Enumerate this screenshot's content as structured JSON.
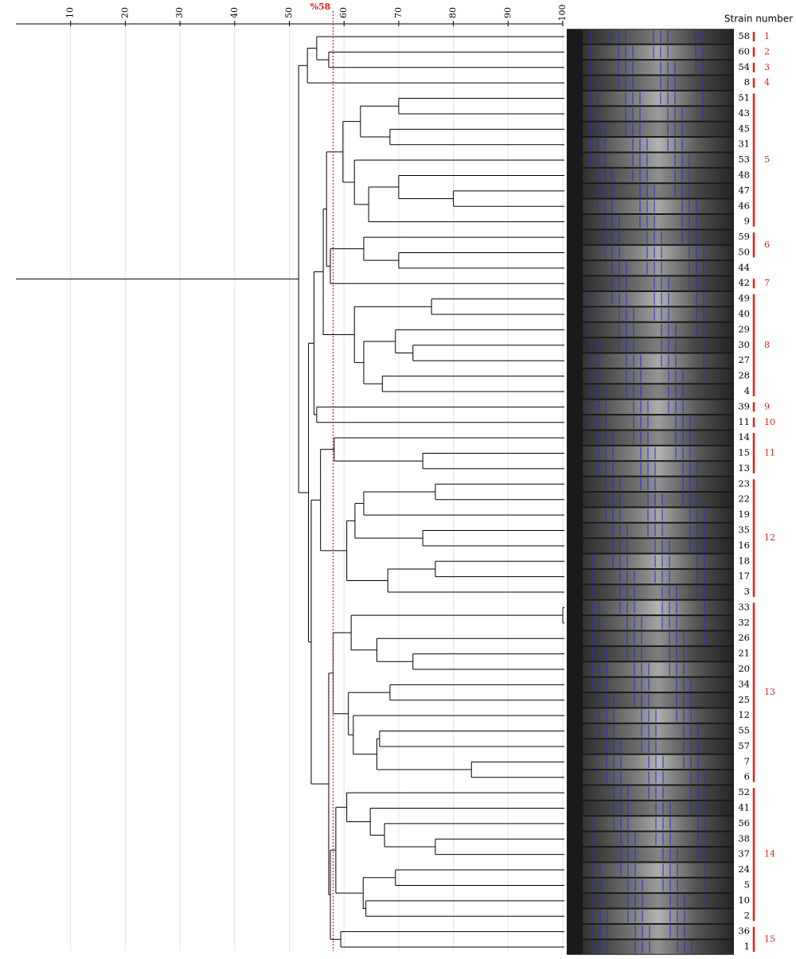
{
  "chart_data": {
    "type": "dendrogram",
    "header": "Strain number",
    "cutoff": 58,
    "cutoff_label": "%58",
    "cutoff_color": "#e0201b",
    "xlim": [
      0,
      100
    ],
    "xticks": [
      10,
      20,
      30,
      40,
      50,
      60,
      70,
      80,
      90,
      100
    ],
    "grid": true,
    "strains": [
      "58",
      "60",
      "54",
      "8",
      "51",
      "43",
      "45",
      "31",
      "53",
      "48",
      "47",
      "46",
      "9",
      "59",
      "50",
      "44",
      "42",
      "49",
      "40",
      "29",
      "30",
      "27",
      "28",
      "4",
      "39",
      "11",
      "14",
      "15",
      "13",
      "23",
      "22",
      "19",
      "35",
      "16",
      "18",
      "17",
      "3",
      "33",
      "32",
      "26",
      "21",
      "20",
      "34",
      "25",
      "12",
      "55",
      "57",
      "7",
      "6",
      "52",
      "41",
      "56",
      "38",
      "37",
      "24",
      "5",
      "10",
      "2",
      "36",
      "1"
    ],
    "merges": [
      {
        "children": [
          1,
          2
        ],
        "similarity": 57.2
      },
      {
        "children": [
          0,
          60
        ],
        "similarity": 55
      },
      {
        "children": [
          61,
          3
        ],
        "similarity": 53.3
      },
      {
        "children": [
          4,
          5
        ],
        "similarity": 70
      },
      {
        "children": [
          6,
          7
        ],
        "similarity": 68.4
      },
      {
        "children": [
          63,
          64
        ],
        "similarity": 63
      },
      {
        "children": [
          10,
          11
        ],
        "similarity": 80
      },
      {
        "children": [
          9,
          66
        ],
        "similarity": 70
      },
      {
        "children": [
          67,
          12
        ],
        "similarity": 64.5
      },
      {
        "children": [
          8,
          68
        ],
        "similarity": 61.9
      },
      {
        "children": [
          65,
          69
        ],
        "similarity": 59.8
      },
      {
        "children": [
          14,
          15
        ],
        "similarity": 70
      },
      {
        "children": [
          13,
          71
        ],
        "similarity": 63.6
      },
      {
        "children": [
          72,
          16
        ],
        "similarity": 57.5
      },
      {
        "children": [
          70,
          73
        ],
        "similarity": 56.8
      },
      {
        "children": [
          17,
          18
        ],
        "similarity": 76
      },
      {
        "children": [
          20,
          21
        ],
        "similarity": 72.6
      },
      {
        "children": [
          19,
          76
        ],
        "similarity": 69.4
      },
      {
        "children": [
          22,
          23
        ],
        "similarity": 67
      },
      {
        "children": [
          77,
          78
        ],
        "similarity": 63.6
      },
      {
        "children": [
          75,
          79
        ],
        "similarity": 61.9
      },
      {
        "children": [
          74,
          80
        ],
        "similarity": 56.2
      },
      {
        "children": [
          24,
          25
        ],
        "similarity": 55
      },
      {
        "children": [
          81,
          82
        ],
        "similarity": 54.5
      },
      {
        "children": [
          27,
          28
        ],
        "similarity": 74.4
      },
      {
        "children": [
          26,
          84
        ],
        "similarity": 58.2
      },
      {
        "children": [
          29,
          30
        ],
        "similarity": 76.7
      },
      {
        "children": [
          86,
          31
        ],
        "similarity": 63.6
      },
      {
        "children": [
          32,
          33
        ],
        "similarity": 74.4
      },
      {
        "children": [
          87,
          88
        ],
        "similarity": 62
      },
      {
        "children": [
          34,
          35
        ],
        "similarity": 76.7
      },
      {
        "children": [
          90,
          36
        ],
        "similarity": 68
      },
      {
        "children": [
          89,
          91
        ],
        "similarity": 60.5
      },
      {
        "children": [
          85,
          92
        ],
        "similarity": 55.7
      },
      {
        "children": [
          37,
          38
        ],
        "similarity": 100
      },
      {
        "children": [
          40,
          41
        ],
        "similarity": 72.6
      },
      {
        "children": [
          39,
          95
        ],
        "similarity": 66
      },
      {
        "children": [
          94,
          96
        ],
        "similarity": 61.3
      },
      {
        "children": [
          42,
          43
        ],
        "similarity": 68.4
      },
      {
        "children": [
          45,
          46
        ],
        "similarity": 66.5
      },
      {
        "children": [
          47,
          48
        ],
        "similarity": 83.3
      },
      {
        "children": [
          99,
          100
        ],
        "similarity": 66
      },
      {
        "children": [
          44,
          101
        ],
        "similarity": 61.7
      },
      {
        "children": [
          98,
          102
        ],
        "similarity": 60.8
      },
      {
        "children": [
          97,
          103
        ],
        "similarity": 58
      },
      {
        "children": [
          52,
          53
        ],
        "similarity": 76.7
      },
      {
        "children": [
          51,
          105
        ],
        "similarity": 67.4
      },
      {
        "children": [
          50,
          106
        ],
        "similarity": 64.8
      },
      {
        "children": [
          49,
          107
        ],
        "similarity": 60.5
      },
      {
        "children": [
          54,
          55
        ],
        "similarity": 69.4
      },
      {
        "children": [
          56,
          57
        ],
        "similarity": 64
      },
      {
        "children": [
          109,
          110
        ],
        "similarity": 63.5
      },
      {
        "children": [
          108,
          111
        ],
        "similarity": 58.5
      },
      {
        "children": [
          58,
          59
        ],
        "similarity": 59.4
      },
      {
        "children": [
          112,
          113
        ],
        "similarity": 57.5
      },
      {
        "children": [
          104,
          114
        ],
        "similarity": 57.2
      },
      {
        "children": [
          93,
          115
        ],
        "similarity": 54
      },
      {
        "children": [
          83,
          116
        ],
        "similarity": 53.5
      },
      {
        "children": [
          62,
          117
        ],
        "similarity": 51.7
      }
    ],
    "groups": [
      {
        "label": "1",
        "first": 0,
        "last": 0
      },
      {
        "label": "2",
        "first": 1,
        "last": 1
      },
      {
        "label": "3",
        "first": 2,
        "last": 2
      },
      {
        "label": "4",
        "first": 3,
        "last": 3
      },
      {
        "label": "5",
        "first": 4,
        "last": 12
      },
      {
        "label": "6",
        "first": 13,
        "last": 14
      },
      {
        "label": "7",
        "first": 16,
        "last": 16
      },
      {
        "label": "8",
        "first": 17,
        "last": 23
      },
      {
        "label": "9",
        "first": 24,
        "last": 24
      },
      {
        "label": "10",
        "first": 25,
        "last": 25
      },
      {
        "label": "11",
        "first": 26,
        "last": 28
      },
      {
        "label": "12",
        "first": 29,
        "last": 36
      },
      {
        "label": "13",
        "first": 37,
        "last": 48
      },
      {
        "label": "14",
        "first": 49,
        "last": 57
      },
      {
        "label": "15",
        "first": 58,
        "last": 59
      }
    ],
    "group_color": "#e0201b"
  }
}
